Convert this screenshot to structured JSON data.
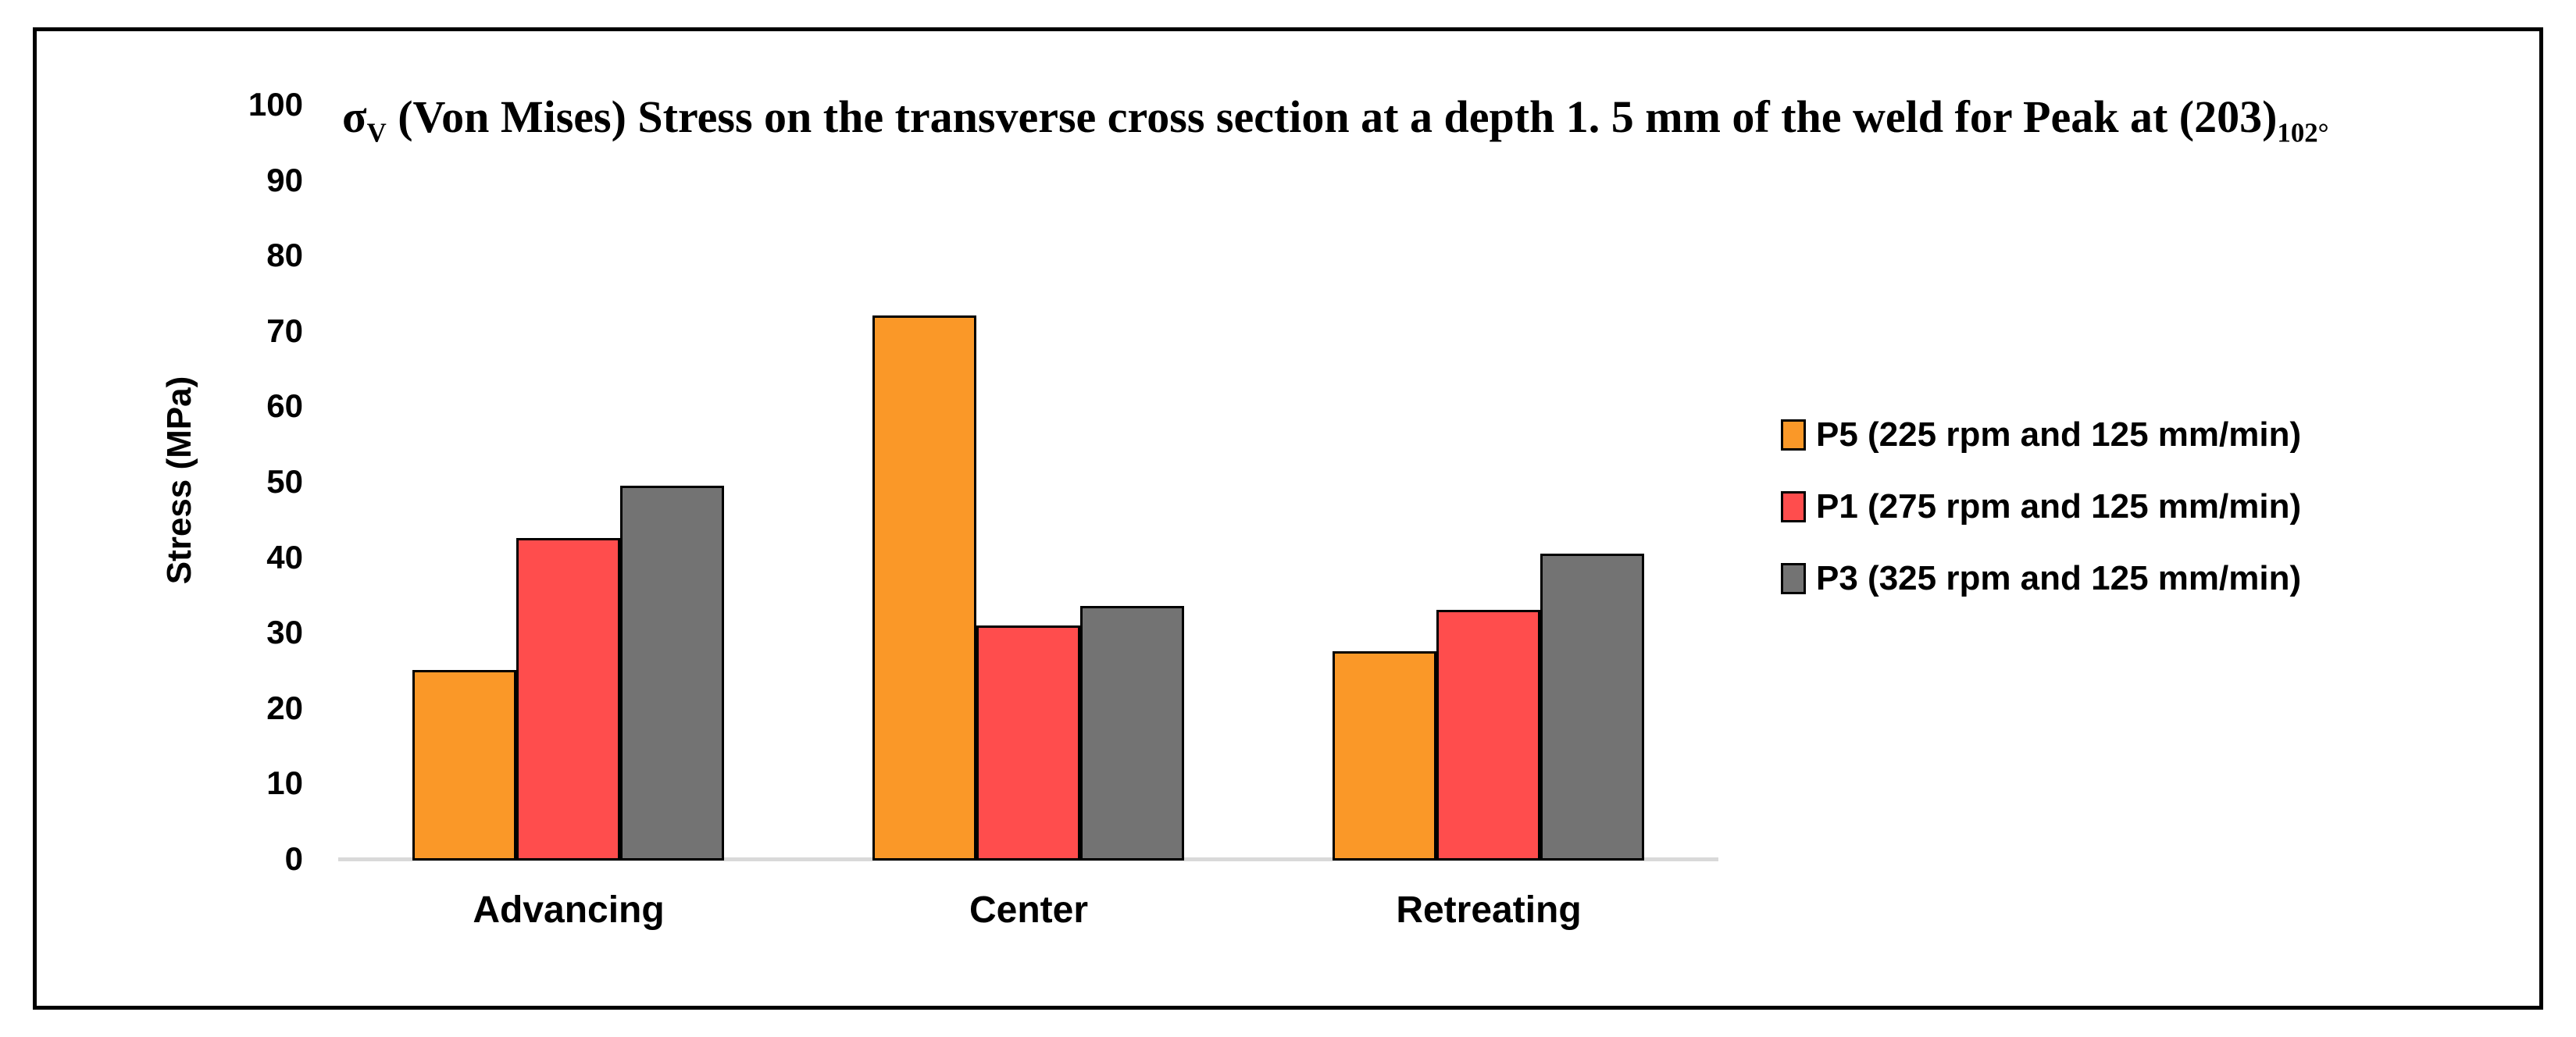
{
  "figure": {
    "title": {
      "sigma": "σ",
      "sigma_sub": "V",
      "main": " (Von Mises) Stress on the transverse cross section at a depth 1. 5 mm of the weld for Peak at (203)",
      "trailing_sub": "102°"
    }
  },
  "chart_data": {
    "type": "bar",
    "title": "σ_V (Von Mises) Stress on the transverse cross section at a depth 1.5 mm of the weld for Peak at (203)_102°",
    "categories": [
      "Advancing",
      "Center",
      "Retreating"
    ],
    "series": [
      {
        "name": "P5 (225 rpm and 125 mm/min)",
        "color": "#FA9828",
        "values": [
          25,
          72,
          27.5
        ]
      },
      {
        "name": "P1 (275 rpm and 125 mm/min)",
        "color": "#FF4D4D",
        "values": [
          42.5,
          31,
          33
        ]
      },
      {
        "name": "P3 (325 rpm and 125 mm/min)",
        "color": "#737373",
        "values": [
          49.5,
          33.5,
          40.5
        ]
      }
    ],
    "xlabel": "",
    "ylabel": "Stress (MPa)",
    "ylim": [
      0,
      100
    ],
    "ytick_step": 10,
    "yticks": [
      "0",
      "10",
      "20",
      "30",
      "40",
      "50",
      "60",
      "70",
      "80",
      "90",
      "100"
    ],
    "grid": false,
    "legend_position": "right",
    "bar_edge_color": "#000000",
    "axis_line_color": "#D9D9D9",
    "background_color": "#FFFFFF",
    "frame_color": "#000000"
  }
}
